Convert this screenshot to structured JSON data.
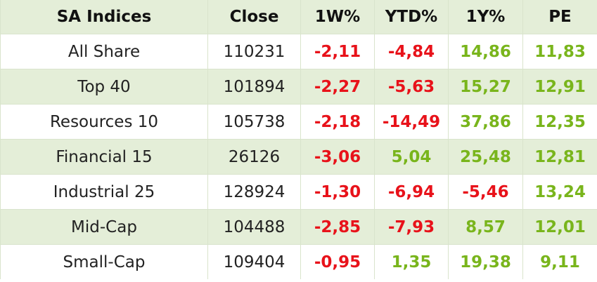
{
  "table": {
    "header": [
      "SA Indices",
      "Close",
      "1W%",
      "YTD%",
      "1Y%",
      "PE"
    ],
    "rows": [
      [
        "All Share",
        "110231",
        "-2,11",
        "-4,84",
        "14,86",
        "11,83"
      ],
      [
        "Top 40",
        "101894",
        "-2,27",
        "-5,63",
        "15,27",
        "12,91"
      ],
      [
        "Resources 10",
        "105738",
        "-2,18",
        "-14,49",
        "37,86",
        "12,35"
      ],
      [
        "Financial 15",
        "26126",
        "-3,06",
        "5,04",
        "25,48",
        "12,81"
      ],
      [
        "Industrial 25",
        "128924",
        "-1,30",
        "-6,94",
        "-5,46",
        "13,24"
      ],
      [
        "Mid-Cap",
        "104488",
        "-2,85",
        "-7,93",
        "8,57",
        "12,01"
      ],
      [
        "Small-Cap",
        "109404",
        "-0,95",
        "1,35",
        "19,38",
        "9,11"
      ]
    ]
  }
}
